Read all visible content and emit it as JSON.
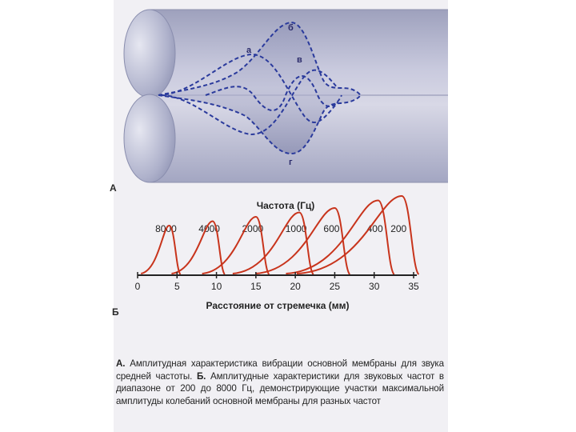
{
  "figure_a": {
    "panel_label": "А",
    "curve_labels": [
      "а",
      "б",
      "в",
      "г"
    ]
  },
  "figure_b": {
    "panel_label": "Б",
    "title": "Частота (Гц)",
    "xlabel": "Расстояние от стремечка (мм)",
    "colors": {
      "curve": "#c8341c",
      "axis": "#222222"
    }
  },
  "chart_data": {
    "type": "line",
    "title": "Частота (Гц)",
    "xlabel": "Расстояние от стремечка (мм)",
    "ylabel": "",
    "xlim": [
      0,
      35
    ],
    "x_ticks": [
      0,
      5,
      10,
      15,
      20,
      25,
      30,
      35
    ],
    "grid": false,
    "series": [
      {
        "name": "8000",
        "peak_x": 4
      },
      {
        "name": "4000",
        "peak_x": 9.5
      },
      {
        "name": "2000",
        "peak_x": 15
      },
      {
        "name": "1000",
        "peak_x": 20.5
      },
      {
        "name": "600",
        "peak_x": 25
      },
      {
        "name": "400",
        "peak_x": 30.5
      },
      {
        "name": "200",
        "peak_x": 33.5
      }
    ]
  },
  "caption": {
    "a_label": "А.",
    "a_text": "Амплитудная характеристика вибрации основной мембраны для звука средней частоты.",
    "b_label": "Б.",
    "b_text": "Амплитудные характеристики для звуковых частот в диапазоне от 200 до 8000 Гц, демонстрирующие участки максимальной амплитуды колебаний основной мембраны для разных частот"
  }
}
